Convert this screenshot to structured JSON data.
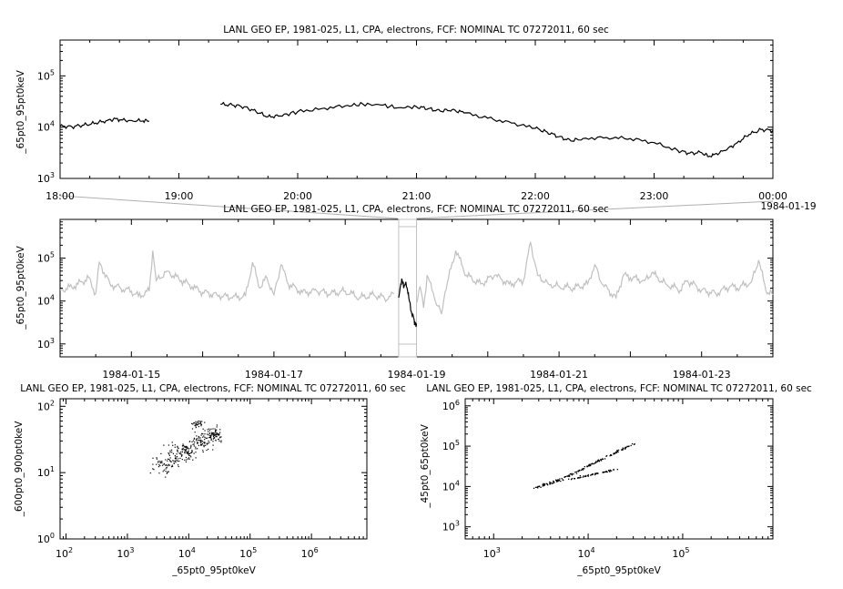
{
  "colors": {
    "axis": "#000000",
    "trace": "#000000",
    "context_trace": "#c0c0c0",
    "zoom_lines": "#b0b0b0"
  },
  "chart_data": [
    {
      "id": "top",
      "type": "line",
      "title": "LANL GEO EP, 1981-025, L1, CPA, electrons, FCF: NOMINAL TC 07272011, 60 sec",
      "ylabel": "_65pt0_95pt0keV",
      "y_scale": "log",
      "ylim": [
        1000,
        500000
      ],
      "y_ticks": [
        {
          "v": 1000,
          "m": "3"
        },
        {
          "v": 10000,
          "m": "4"
        },
        {
          "v": 100000,
          "m": "5"
        }
      ],
      "x_unit": "hours since 1984-01-18 18:00",
      "xlim": [
        0,
        6
      ],
      "x_ticks": [
        {
          "v": 0,
          "label": "18:00"
        },
        {
          "v": 1,
          "label": "19:00"
        },
        {
          "v": 2,
          "label": "20:00"
        },
        {
          "v": 3,
          "label": "21:00"
        },
        {
          "v": 4,
          "label": "22:00"
        },
        {
          "v": 5,
          "label": "23:00"
        },
        {
          "v": 6,
          "label": "00:00"
        }
      ],
      "x_sublabel": "1984-01-19",
      "series": [
        {
          "segments": [
            [
              [
                0,
                10500
              ],
              [
                0.1,
                10200
              ],
              [
                0.2,
                11000
              ],
              [
                0.3,
                12000
              ],
              [
                0.4,
                13500
              ],
              [
                0.45,
                14500
              ],
              [
                0.5,
                13800
              ],
              [
                0.6,
                13500
              ],
              [
                0.7,
                13200
              ],
              [
                0.75,
                13000
              ]
            ],
            [
              [
                1.35,
                28000
              ],
              [
                1.45,
                27000
              ],
              [
                1.55,
                25000
              ],
              [
                1.65,
                20000
              ],
              [
                1.75,
                16000
              ],
              [
                1.85,
                16500
              ],
              [
                2.0,
                20000
              ],
              [
                2.2,
                23000
              ],
              [
                2.4,
                26000
              ],
              [
                2.55,
                28000
              ],
              [
                2.7,
                27000
              ],
              [
                2.85,
                24000
              ],
              [
                3.0,
                25000
              ],
              [
                3.1,
                23000
              ],
              [
                3.2,
                20500
              ],
              [
                3.3,
                22000
              ],
              [
                3.4,
                19000
              ],
              [
                3.6,
                15000
              ],
              [
                3.8,
                12000
              ],
              [
                4.0,
                9500
              ],
              [
                4.1,
                8000
              ],
              [
                4.2,
                6500
              ],
              [
                4.3,
                5400
              ],
              [
                4.4,
                6000
              ],
              [
                4.6,
                6300
              ],
              [
                4.8,
                6000
              ],
              [
                5.0,
                5000
              ],
              [
                5.2,
                3500
              ],
              [
                5.3,
                3100
              ],
              [
                5.4,
                3200
              ],
              [
                5.45,
                2700
              ],
              [
                5.5,
                2900
              ],
              [
                5.6,
                3500
              ],
              [
                5.7,
                5000
              ],
              [
                5.8,
                7200
              ],
              [
                5.9,
                9000
              ],
              [
                6.0,
                8600
              ]
            ]
          ]
        }
      ]
    },
    {
      "id": "middle",
      "type": "line",
      "title": "LANL GEO EP, 1981-025, L1, CPA, electrons, FCF: NOMINAL TC 07272011, 60 sec",
      "ylabel": "_65pt0_95pt0keV",
      "y_scale": "log",
      "ylim": [
        500,
        800000
      ],
      "y_ticks": [
        {
          "v": 1000,
          "m": "3"
        },
        {
          "v": 10000,
          "m": "4"
        },
        {
          "v": 100000,
          "m": "5"
        }
      ],
      "x_unit": "days since 1984-01-14 00:00",
      "xlim": [
        0,
        10
      ],
      "x_ticks": [
        {
          "v": 1,
          "label": "1984-01-15"
        },
        {
          "v": 3,
          "label": "1984-01-17"
        },
        {
          "v": 5,
          "label": "1984-01-19"
        },
        {
          "v": 7,
          "label": "1984-01-21"
        },
        {
          "v": 9,
          "label": "1984-01-23"
        }
      ],
      "highlight_range": [
        4.75,
        5.0
      ],
      "series": [
        {
          "name_hidden": "context",
          "points": [
            [
              0,
              18000
            ],
            [
              0.2,
              22000
            ],
            [
              0.4,
              35000
            ],
            [
              0.5,
              15000
            ],
            [
              0.55,
              80000
            ],
            [
              0.7,
              25000
            ],
            [
              0.85,
              20000
            ],
            [
              1.0,
              17000
            ],
            [
              1.1,
              13000
            ],
            [
              1.25,
              17000
            ],
            [
              1.3,
              150000
            ],
            [
              1.35,
              30000
            ],
            [
              1.5,
              50000
            ],
            [
              1.7,
              30000
            ],
            [
              1.8,
              25000
            ],
            [
              1.9,
              20000
            ],
            [
              2.0,
              16000
            ],
            [
              2.2,
              14000
            ],
            [
              2.4,
              12000
            ],
            [
              2.6,
              13000
            ],
            [
              2.7,
              80000
            ],
            [
              2.8,
              20000
            ],
            [
              2.9,
              35000
            ],
            [
              3.0,
              14000
            ],
            [
              3.1,
              70000
            ],
            [
              3.2,
              25000
            ],
            [
              3.4,
              16000
            ],
            [
              3.6,
              17000
            ],
            [
              3.8,
              15000
            ],
            [
              4.0,
              17000
            ],
            [
              4.2,
              12000
            ],
            [
              4.4,
              14000
            ],
            [
              4.6,
              11000
            ],
            [
              4.7,
              16000
            ],
            [
              5.0,
              9000
            ],
            [
              5.05,
              22000
            ],
            [
              5.1,
              7000
            ],
            [
              5.15,
              40000
            ],
            [
              5.25,
              12000
            ],
            [
              5.35,
              5000
            ],
            [
              5.4,
              16000
            ],
            [
              5.55,
              150000
            ],
            [
              5.7,
              40000
            ],
            [
              5.9,
              25000
            ],
            [
              6.1,
              40000
            ],
            [
              6.3,
              25000
            ],
            [
              6.5,
              30000
            ],
            [
              6.6,
              230000
            ],
            [
              6.7,
              40000
            ],
            [
              6.85,
              25000
            ],
            [
              7.0,
              22000
            ],
            [
              7.2,
              20000
            ],
            [
              7.4,
              25000
            ],
            [
              7.5,
              70000
            ],
            [
              7.6,
              25000
            ],
            [
              7.8,
              12000
            ],
            [
              7.9,
              40000
            ],
            [
              8.0,
              35000
            ],
            [
              8.2,
              30000
            ],
            [
              8.3,
              45000
            ],
            [
              8.5,
              25000
            ],
            [
              8.7,
              18000
            ],
            [
              8.8,
              30000
            ],
            [
              9.0,
              18000
            ],
            [
              9.2,
              15000
            ],
            [
              9.4,
              22000
            ],
            [
              9.5,
              20000
            ],
            [
              9.7,
              28000
            ],
            [
              9.8,
              90000
            ],
            [
              9.9,
              18000
            ],
            [
              10.0,
              14000
            ]
          ]
        },
        {
          "name_hidden": "selected",
          "points": [
            [
              4.75,
              12000
            ],
            [
              4.78,
              25000
            ],
            [
              4.8,
              30000
            ],
            [
              4.82,
              20000
            ],
            [
              4.85,
              28000
            ],
            [
              4.88,
              15000
            ],
            [
              4.9,
              10000
            ],
            [
              4.93,
              5500
            ],
            [
              4.96,
              4000
            ],
            [
              4.98,
              3200
            ],
            [
              5.0,
              3000
            ]
          ]
        }
      ]
    },
    {
      "id": "bottom-left",
      "type": "scatter",
      "title": "LANL GEO EP, 1981-025, L1, CPA, electrons, FCF: NOMINAL TC 07272011, 60 sec",
      "xlabel": "_65pt0_95pt0keV",
      "ylabel": "_600pt0_900pt0keV",
      "x_scale": "log",
      "y_scale": "log",
      "xlim": [
        80,
        8000000
      ],
      "ylim": [
        1,
        130
      ],
      "x_ticks": [
        {
          "v": 100,
          "m": "2"
        },
        {
          "v": 1000,
          "m": "3"
        },
        {
          "v": 10000,
          "m": "4"
        },
        {
          "v": 100000,
          "m": "5"
        },
        {
          "v": 1000000,
          "m": "6"
        }
      ],
      "y_ticks": [
        {
          "v": 1,
          "m": "0"
        },
        {
          "v": 10,
          "m": "1"
        },
        {
          "v": 100,
          "m": "2"
        }
      ],
      "cloud": [
        {
          "x": 3500,
          "y": 14,
          "sx": 0.12,
          "sy": 0.1,
          "n": 45
        },
        {
          "x": 6000,
          "y": 18,
          "sx": 0.12,
          "sy": 0.12,
          "n": 60
        },
        {
          "x": 10000,
          "y": 22,
          "sx": 0.1,
          "sy": 0.1,
          "n": 60
        },
        {
          "x": 16000,
          "y": 30,
          "sx": 0.1,
          "sy": 0.1,
          "n": 70
        },
        {
          "x": 25000,
          "y": 38,
          "sx": 0.08,
          "sy": 0.08,
          "n": 70
        },
        {
          "x": 14000,
          "y": 55,
          "sx": 0.06,
          "sy": 0.04,
          "n": 30
        }
      ]
    },
    {
      "id": "bottom-right",
      "type": "scatter",
      "title": "LANL GEO EP, 1981-025, L1, CPA, electrons, FCF: NOMINAL TC 07272011, 60 sec",
      "xlabel": "_65pt0_95pt0keV",
      "ylabel": "_45pt0_65pt0keV",
      "x_scale": "log",
      "y_scale": "log",
      "xlim": [
        500,
        900000
      ],
      "ylim": [
        500,
        1500000
      ],
      "x_ticks": [
        {
          "v": 1000,
          "m": "3"
        },
        {
          "v": 10000,
          "m": "4"
        },
        {
          "v": 100000,
          "m": "5"
        }
      ],
      "y_ticks": [
        {
          "v": 1000,
          "m": "3"
        },
        {
          "v": 10000,
          "m": "4"
        },
        {
          "v": 100000,
          "m": "5"
        },
        {
          "v": 1000000,
          "m": "6"
        }
      ],
      "cloud_lines": [
        {
          "from": [
            2700,
            9500
          ],
          "to": [
            5000,
            15000
          ],
          "spread": 0.05,
          "n": 50
        },
        {
          "from": [
            5000,
            15000
          ],
          "to": [
            30000,
            120000
          ],
          "spread": 0.03,
          "n": 110
        },
        {
          "from": [
            6000,
            15000
          ],
          "to": [
            20000,
            28000
          ],
          "spread": 0.03,
          "n": 60
        }
      ]
    }
  ]
}
